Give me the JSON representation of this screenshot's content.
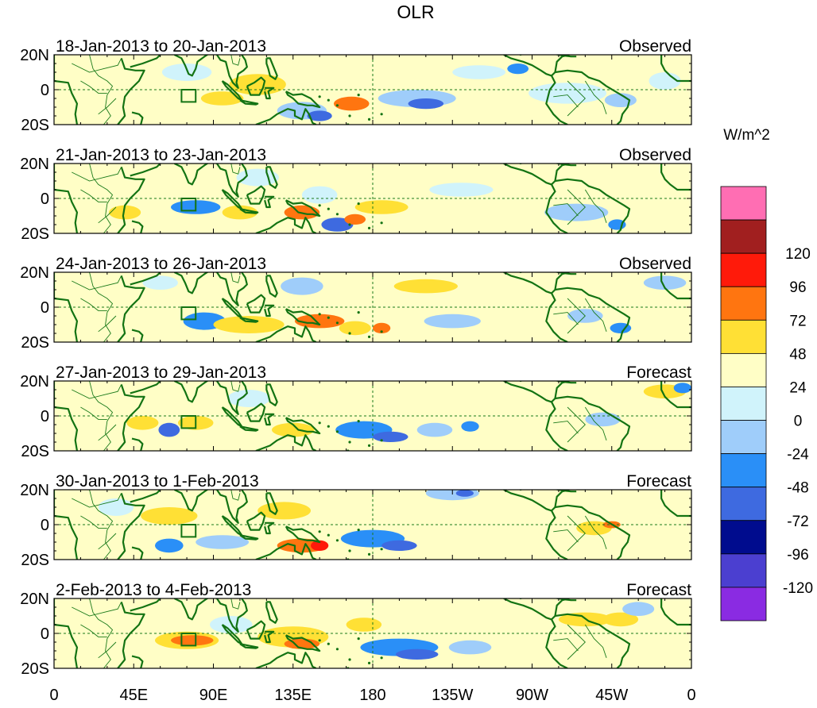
{
  "title": "OLR",
  "unit_label": "W/m^2",
  "lat_labels": [
    "20N",
    "0",
    "20S"
  ],
  "lon_labels": [
    "0",
    "45E",
    "90E",
    "135E",
    "180",
    "135W",
    "90W",
    "45W",
    "0"
  ],
  "panels": [
    {
      "date_range": "18-Jan-2013 to 20-Jan-2013",
      "kind": "Observed"
    },
    {
      "date_range": "21-Jan-2013 to 23-Jan-2013",
      "kind": "Observed"
    },
    {
      "date_range": "24-Jan-2013 to 26-Jan-2013",
      "kind": "Observed"
    },
    {
      "date_range": "27-Jan-2013 to 29-Jan-2013",
      "kind": "Forecast"
    },
    {
      "date_range": "30-Jan-2013 to 1-Feb-2013",
      "kind": "Forecast"
    },
    {
      "date_range": "2-Feb-2013 to 4-Feb-2013",
      "kind": "Forecast"
    }
  ],
  "colorbar": {
    "colors": [
      "#8a2be2",
      "#4b3fd0",
      "#000c8e",
      "#3e6ae0",
      "#2a8ff7",
      "#9fcdfa",
      "#d0f3fb",
      "#fffec6",
      "#ffe035",
      "#ff7510",
      "#ff1a0a",
      "#a11f1f",
      "#ff6eb3"
    ],
    "labels": [
      "-120",
      "-96",
      "-72",
      "-48",
      "-24",
      "0",
      "24",
      "48",
      "72",
      "96",
      "120"
    ]
  }
}
